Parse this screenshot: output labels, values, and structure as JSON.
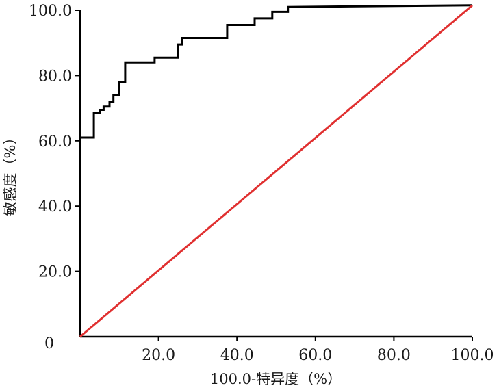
{
  "chart_data": {
    "type": "line",
    "title": "",
    "xlabel": "100.0-特异度（%）",
    "ylabel": "敏感度（%）",
    "xlim": [
      0,
      100
    ],
    "ylim": [
      0,
      100
    ],
    "x_ticks": [
      {
        "value": 20,
        "label": "20.0"
      },
      {
        "value": 40,
        "label": "40.0"
      },
      {
        "value": 60,
        "label": "60.0"
      },
      {
        "value": 80,
        "label": "80.0"
      },
      {
        "value": 100,
        "label": "100.0"
      }
    ],
    "y_ticks": [
      {
        "value": 0,
        "label": "0"
      },
      {
        "value": 20,
        "label": "20.0"
      },
      {
        "value": 40,
        "label": "40.0"
      },
      {
        "value": 60,
        "label": "60.0"
      },
      {
        "value": 80,
        "label": "80.0"
      },
      {
        "value": 100,
        "label": "100.0"
      }
    ],
    "grid": false,
    "legend": "none",
    "series": [
      {
        "color": "#000000",
        "style": "step",
        "points": [
          [
            0,
            0
          ],
          [
            0,
            61
          ],
          [
            3.5,
            61
          ],
          [
            3.5,
            68.5
          ],
          [
            5,
            68.5
          ],
          [
            5,
            69.5
          ],
          [
            6,
            69.5
          ],
          [
            6,
            70.5
          ],
          [
            7.5,
            70.5
          ],
          [
            7.5,
            72
          ],
          [
            8.5,
            72
          ],
          [
            8.5,
            74
          ],
          [
            10,
            74
          ],
          [
            10,
            78
          ],
          [
            11.5,
            78
          ],
          [
            11.5,
            84
          ],
          [
            19,
            84
          ],
          [
            19,
            85.5
          ],
          [
            25,
            85.5
          ],
          [
            25,
            89.5
          ],
          [
            26,
            89.5
          ],
          [
            26,
            91.5
          ],
          [
            37.5,
            91.5
          ],
          [
            37.5,
            95.5
          ],
          [
            44.5,
            95.5
          ],
          [
            44.5,
            97.5
          ],
          [
            49,
            97.5
          ],
          [
            49,
            99.5
          ],
          [
            53,
            99.5
          ],
          [
            53,
            101
          ],
          [
            100,
            101.5
          ]
        ]
      },
      {
        "color": "#e03030",
        "style": "reference",
        "points": [
          [
            0,
            0
          ],
          [
            100,
            101.5
          ]
        ]
      }
    ]
  }
}
